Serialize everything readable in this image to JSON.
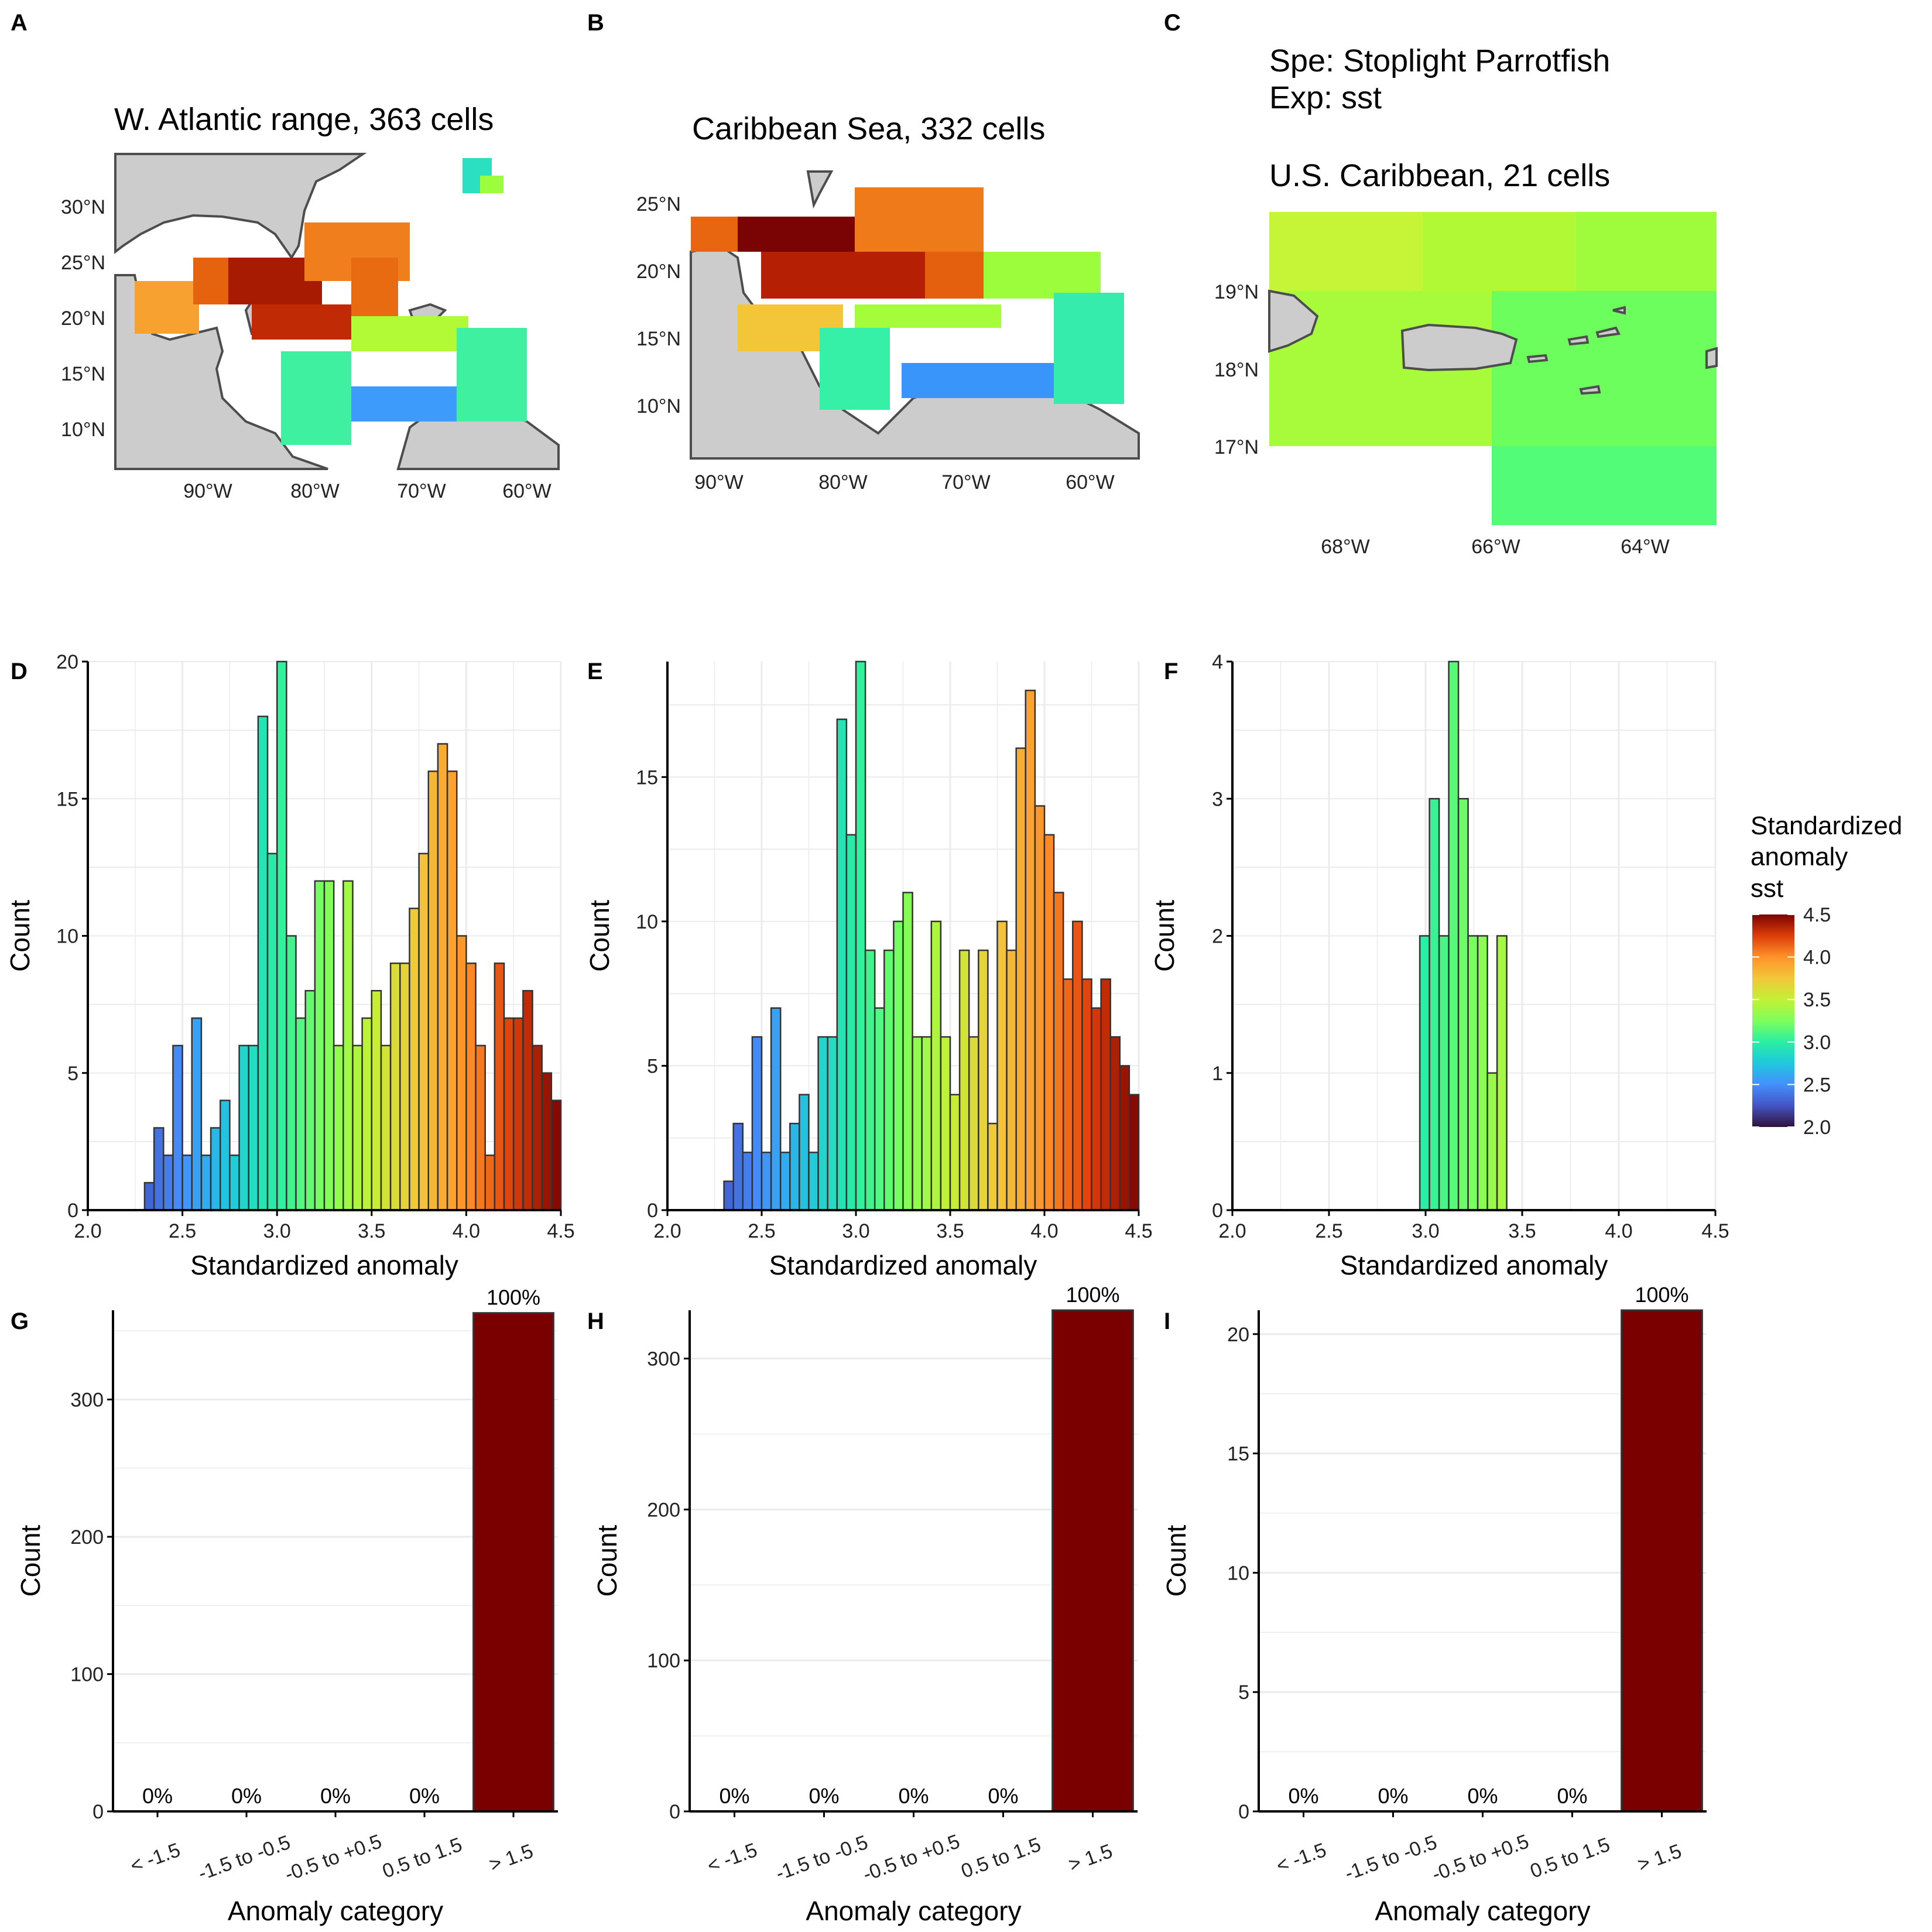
{
  "panels": {
    "A": {
      "letter": "A",
      "title": "W. Atlantic range, 363 cells",
      "lon_ticks": [
        "90°W",
        "80°W",
        "70°W",
        "60°W"
      ],
      "lat_ticks": [
        "30°N",
        "25°N",
        "20°N",
        "15°N",
        "10°N"
      ]
    },
    "B": {
      "letter": "B",
      "title": "Caribbean Sea, 332 cells",
      "lon_ticks": [
        "90°W",
        "80°W",
        "70°W",
        "60°W"
      ],
      "lat_ticks": [
        "25°N",
        "20°N",
        "15°N",
        "10°N"
      ]
    },
    "C": {
      "letter": "C",
      "header_line1": "Spe: Stoplight Parrotfish",
      "header_line2": "Exp: sst",
      "title": "U.S. Caribbean, 21 cells",
      "lon_ticks": [
        "68°W",
        "66°W",
        "64°W"
      ],
      "lat_ticks": [
        "19°N",
        "18°N",
        "17°N"
      ]
    },
    "D": {
      "letter": "D"
    },
    "E": {
      "letter": "E"
    },
    "F": {
      "letter": "F"
    },
    "G": {
      "letter": "G"
    },
    "H": {
      "letter": "H"
    },
    "I": {
      "letter": "I"
    }
  },
  "legend": {
    "title_lines": [
      "Standardized",
      "anomaly",
      "sst"
    ],
    "ticks": [
      "4.5",
      "4.0",
      "3.5",
      "3.0",
      "2.5",
      "2.0"
    ],
    "range": [
      2.0,
      4.5
    ]
  },
  "colors": {
    "land": "#cccccc",
    "coast": "#4d4d4d",
    "bar_cat": "#7a0000",
    "grid": "#ebebeb"
  },
  "chart_data": [
    {
      "panel": "D",
      "type": "bar",
      "xlabel": "Standardized anomaly",
      "ylabel": "Count",
      "xlim": [
        2.0,
        4.5
      ],
      "ylim": [
        0,
        20
      ],
      "x_ticks": [
        "2.0",
        "2.5",
        "3.0",
        "3.5",
        "4.0",
        "4.5"
      ],
      "y_ticks": [
        "0",
        "5",
        "10",
        "15",
        "20"
      ],
      "bins": [
        [
          2.3,
          1
        ],
        [
          2.35,
          3
        ],
        [
          2.4,
          2
        ],
        [
          2.45,
          6
        ],
        [
          2.5,
          2
        ],
        [
          2.55,
          7
        ],
        [
          2.6,
          2
        ],
        [
          2.65,
          3
        ],
        [
          2.7,
          4
        ],
        [
          2.75,
          2
        ],
        [
          2.8,
          6
        ],
        [
          2.85,
          6
        ],
        [
          2.9,
          18
        ],
        [
          2.95,
          13
        ],
        [
          3.0,
          20
        ],
        [
          3.05,
          10
        ],
        [
          3.1,
          7
        ],
        [
          3.15,
          8
        ],
        [
          3.2,
          12
        ],
        [
          3.25,
          12
        ],
        [
          3.3,
          6
        ],
        [
          3.35,
          12
        ],
        [
          3.4,
          6
        ],
        [
          3.45,
          7
        ],
        [
          3.5,
          8
        ],
        [
          3.55,
          6
        ],
        [
          3.6,
          9
        ],
        [
          3.65,
          9
        ],
        [
          3.7,
          11
        ],
        [
          3.75,
          13
        ],
        [
          3.8,
          16
        ],
        [
          3.85,
          17
        ],
        [
          3.9,
          16
        ],
        [
          3.95,
          10
        ],
        [
          4.0,
          9
        ],
        [
          4.05,
          6
        ],
        [
          4.1,
          2
        ],
        [
          4.15,
          9
        ],
        [
          4.2,
          7
        ],
        [
          4.25,
          7
        ],
        [
          4.3,
          8
        ],
        [
          4.35,
          6
        ],
        [
          4.4,
          5
        ],
        [
          4.45,
          4
        ]
      ]
    },
    {
      "panel": "E",
      "type": "bar",
      "xlabel": "Standardized anomaly",
      "ylabel": "Count",
      "xlim": [
        2.0,
        4.5
      ],
      "ylim": [
        0,
        19
      ],
      "x_ticks": [
        "2.0",
        "2.5",
        "3.0",
        "3.5",
        "4.0",
        "4.5"
      ],
      "y_ticks": [
        "0",
        "5",
        "10",
        "15"
      ],
      "bins": [
        [
          2.3,
          1
        ],
        [
          2.35,
          3
        ],
        [
          2.4,
          2
        ],
        [
          2.45,
          6
        ],
        [
          2.5,
          2
        ],
        [
          2.55,
          7
        ],
        [
          2.6,
          2
        ],
        [
          2.65,
          3
        ],
        [
          2.7,
          4
        ],
        [
          2.75,
          2
        ],
        [
          2.8,
          6
        ],
        [
          2.85,
          6
        ],
        [
          2.9,
          17
        ],
        [
          2.95,
          13
        ],
        [
          3.0,
          19
        ],
        [
          3.05,
          9
        ],
        [
          3.1,
          7
        ],
        [
          3.15,
          9
        ],
        [
          3.2,
          10
        ],
        [
          3.25,
          11
        ],
        [
          3.3,
          6
        ],
        [
          3.35,
          6
        ],
        [
          3.4,
          10
        ],
        [
          3.45,
          6
        ],
        [
          3.5,
          4
        ],
        [
          3.55,
          9
        ],
        [
          3.6,
          6
        ],
        [
          3.65,
          9
        ],
        [
          3.7,
          3
        ],
        [
          3.75,
          10
        ],
        [
          3.8,
          9
        ],
        [
          3.85,
          16
        ],
        [
          3.9,
          18
        ],
        [
          3.95,
          14
        ],
        [
          4.0,
          13
        ],
        [
          4.05,
          11
        ],
        [
          4.1,
          8
        ],
        [
          4.15,
          10
        ],
        [
          4.2,
          8
        ],
        [
          4.25,
          7
        ],
        [
          4.3,
          8
        ],
        [
          4.35,
          6
        ],
        [
          4.4,
          5
        ],
        [
          4.45,
          4
        ]
      ]
    },
    {
      "panel": "F",
      "type": "bar",
      "xlabel": "Standardized anomaly",
      "ylabel": "Count",
      "xlim": [
        2.0,
        4.5
      ],
      "ylim": [
        0,
        4
      ],
      "x_ticks": [
        "2.0",
        "2.5",
        "3.0",
        "3.5",
        "4.0",
        "4.5"
      ],
      "y_ticks": [
        "0",
        "1",
        "2",
        "3",
        "4"
      ],
      "bins": [
        [
          2.97,
          2
        ],
        [
          3.02,
          3
        ],
        [
          3.07,
          2
        ],
        [
          3.12,
          4
        ],
        [
          3.17,
          3
        ],
        [
          3.22,
          2
        ],
        [
          3.27,
          2
        ],
        [
          3.32,
          1
        ],
        [
          3.37,
          2
        ]
      ]
    },
    {
      "panel": "G",
      "type": "bar",
      "xlabel": "Anomaly category",
      "ylabel": "Count",
      "ylim": [
        0,
        365
      ],
      "categories": [
        "< -1.5",
        "-1.5 to -0.5",
        "-0.5 to +0.5",
        "0.5 to 1.5",
        "> 1.5"
      ],
      "values": [
        0,
        0,
        0,
        0,
        363
      ],
      "labels": [
        "0%",
        "0%",
        "0%",
        "0%",
        "100%"
      ],
      "y_ticks": [
        "0",
        "100",
        "200",
        "300"
      ],
      "y_tick_vals": [
        0,
        100,
        200,
        300
      ]
    },
    {
      "panel": "H",
      "type": "bar",
      "xlabel": "Anomaly category",
      "ylabel": "Count",
      "ylim": [
        0,
        332
      ],
      "categories": [
        "< -1.5",
        "-1.5 to -0.5",
        "-0.5 to +0.5",
        "0.5 to 1.5",
        "> 1.5"
      ],
      "values": [
        0,
        0,
        0,
        0,
        332
      ],
      "labels": [
        "0%",
        "0%",
        "0%",
        "0%",
        "100%"
      ],
      "y_ticks": [
        "0",
        "100",
        "200",
        "300"
      ],
      "y_tick_vals": [
        0,
        100,
        200,
        300
      ]
    },
    {
      "panel": "I",
      "type": "bar",
      "xlabel": "Anomaly category",
      "ylabel": "Count",
      "ylim": [
        0,
        21
      ],
      "categories": [
        "< -1.5",
        "-1.5 to -0.5",
        "-0.5 to +0.5",
        "0.5 to 1.5",
        "> 1.5"
      ],
      "values": [
        0,
        0,
        0,
        0,
        21
      ],
      "labels": [
        "0%",
        "0%",
        "0%",
        "0%",
        "100%"
      ],
      "y_ticks": [
        "0",
        "5",
        "10",
        "15",
        "20"
      ],
      "y_tick_vals": [
        0,
        5,
        10,
        15,
        20
      ]
    }
  ]
}
